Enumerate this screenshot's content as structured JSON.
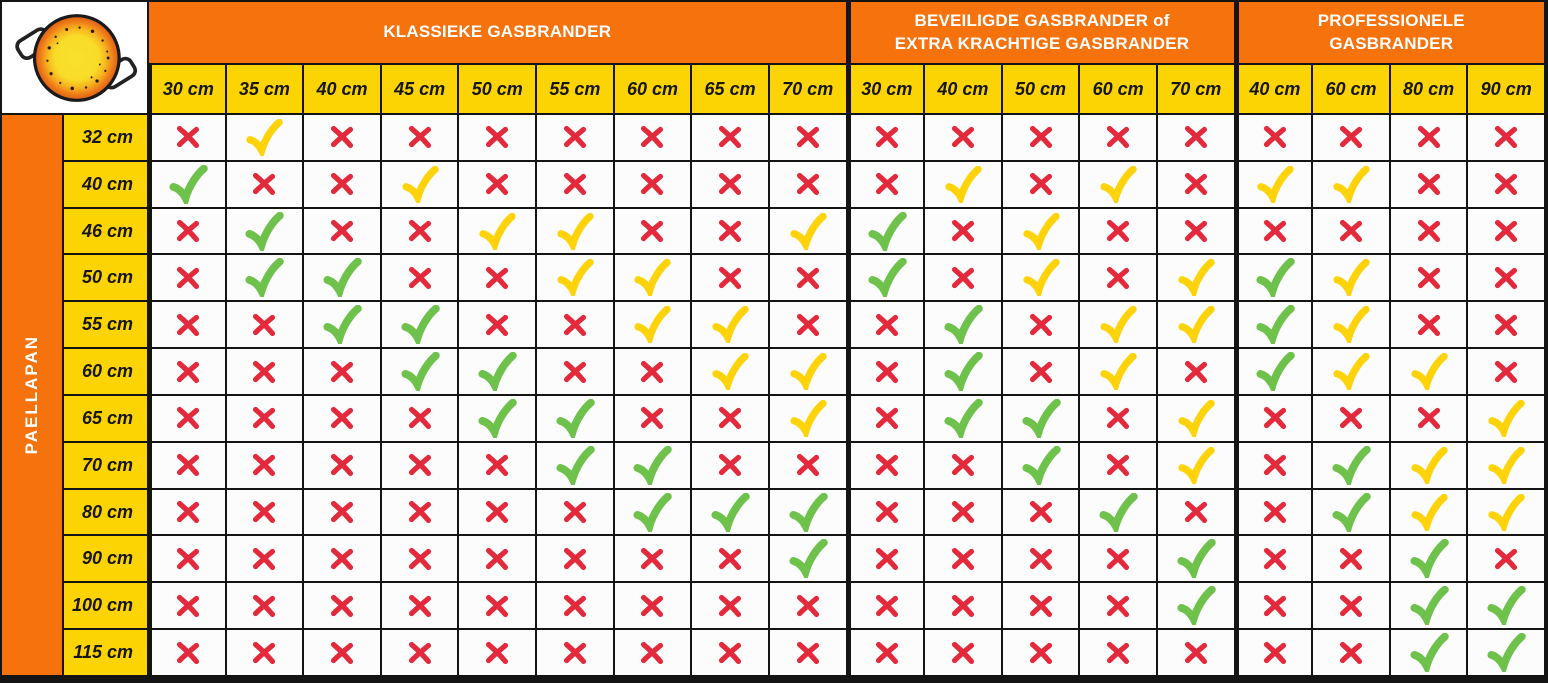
{
  "colors": {
    "orange_band": "#F5720D",
    "yellow_band": "#FCD303",
    "red_cross": "#E32A3C",
    "yellow_check": "#FFD30A",
    "green_check": "#6EC24B",
    "grid_line": "#141414",
    "cell_bg": "#FCFCFC"
  },
  "chart_data": {
    "type": "table",
    "row_axis_label": "PAELLAPAN",
    "column_groups": [
      {
        "name": "KLASSIEKE GASBRANDER",
        "columns": [
          "30 cm",
          "35 cm",
          "40 cm",
          "45 cm",
          "50 cm",
          "55 cm",
          "60 cm",
          "65 cm",
          "70 cm"
        ]
      },
      {
        "name": "BEVEILIGDE GASBRANDER of\nEXTRA KRACHTIGE GASBRANDER",
        "columns": [
          "30 cm",
          "40 cm",
          "50 cm",
          "60 cm",
          "70 cm"
        ]
      },
      {
        "name": "PROFESSIONELE\nGASBRANDER",
        "columns": [
          "40 cm",
          "60 cm",
          "80 cm",
          "90 cm"
        ]
      }
    ],
    "marks_key": {
      "x": {
        "symbol": "red-cross",
        "icon": "red-cross-icon"
      },
      "y": {
        "symbol": "yellow-check",
        "icon": "yellow-check-icon"
      },
      "g": {
        "symbol": "green-check",
        "icon": "green-check-icon"
      }
    },
    "rows": [
      {
        "label": "32 cm",
        "marks": [
          "x",
          "y",
          "x",
          "x",
          "x",
          "x",
          "x",
          "x",
          "x",
          "x",
          "x",
          "x",
          "x",
          "x",
          "x",
          "x",
          "x",
          "x"
        ]
      },
      {
        "label": "40 cm",
        "marks": [
          "g",
          "x",
          "x",
          "y",
          "x",
          "x",
          "x",
          "x",
          "x",
          "x",
          "y",
          "x",
          "y",
          "x",
          "y",
          "y",
          "x",
          "x"
        ]
      },
      {
        "label": "46 cm",
        "marks": [
          "x",
          "g",
          "x",
          "x",
          "y",
          "y",
          "x",
          "x",
          "y",
          "g",
          "x",
          "y",
          "x",
          "x",
          "x",
          "x",
          "x",
          "x"
        ]
      },
      {
        "label": "50 cm",
        "marks": [
          "x",
          "g",
          "g",
          "x",
          "x",
          "y",
          "y",
          "x",
          "x",
          "g",
          "x",
          "y",
          "x",
          "y",
          "g",
          "y",
          "x",
          "x"
        ]
      },
      {
        "label": "55 cm",
        "marks": [
          "x",
          "x",
          "g",
          "g",
          "x",
          "x",
          "y",
          "y",
          "x",
          "x",
          "g",
          "x",
          "y",
          "y",
          "g",
          "y",
          "x",
          "x"
        ]
      },
      {
        "label": "60 cm",
        "marks": [
          "x",
          "x",
          "x",
          "g",
          "g",
          "x",
          "x",
          "y",
          "y",
          "x",
          "g",
          "x",
          "y",
          "x",
          "g",
          "y",
          "y",
          "x"
        ]
      },
      {
        "label": "65 cm",
        "marks": [
          "x",
          "x",
          "x",
          "x",
          "g",
          "g",
          "x",
          "x",
          "y",
          "x",
          "g",
          "g",
          "x",
          "y",
          "x",
          "x",
          "x",
          "y"
        ]
      },
      {
        "label": "70 cm",
        "marks": [
          "x",
          "x",
          "x",
          "x",
          "x",
          "g",
          "g",
          "x",
          "x",
          "x",
          "x",
          "g",
          "x",
          "y",
          "x",
          "g",
          "y",
          "y"
        ]
      },
      {
        "label": "80 cm",
        "marks": [
          "x",
          "x",
          "x",
          "x",
          "x",
          "x",
          "g",
          "g",
          "g",
          "x",
          "x",
          "x",
          "g",
          "x",
          "x",
          "g",
          "y",
          "y"
        ]
      },
      {
        "label": "90 cm",
        "marks": [
          "x",
          "x",
          "x",
          "x",
          "x",
          "x",
          "x",
          "x",
          "g",
          "x",
          "x",
          "x",
          "x",
          "g",
          "x",
          "x",
          "g",
          "x"
        ]
      },
      {
        "label": "100 cm",
        "marks": [
          "x",
          "x",
          "x",
          "x",
          "x",
          "x",
          "x",
          "x",
          "x",
          "x",
          "x",
          "x",
          "x",
          "g",
          "x",
          "x",
          "g",
          "g"
        ]
      },
      {
        "label": "115 cm",
        "marks": [
          "x",
          "x",
          "x",
          "x",
          "x",
          "x",
          "x",
          "x",
          "x",
          "x",
          "x",
          "x",
          "x",
          "x",
          "x",
          "x",
          "g",
          "g"
        ]
      }
    ]
  }
}
